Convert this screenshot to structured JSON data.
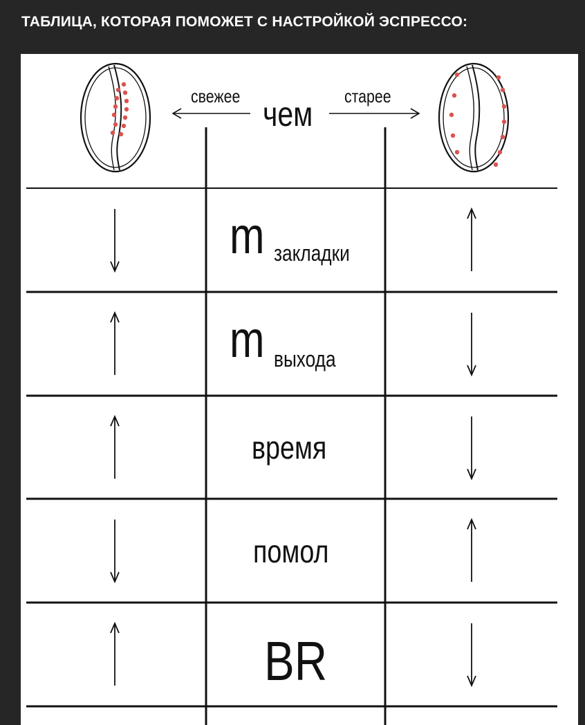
{
  "header": {
    "title": "ТАБЛИЦА, КОТОРАЯ ПОМОЖЕТ С НАСТРОЙКОЙ ЭСПРЕССО:"
  },
  "table": {
    "header": {
      "fresher": "свежее",
      "than": "чем",
      "older": "старее",
      "left_bean_icon": "fresh-coffee-bean-icon",
      "right_bean_icon": "old-coffee-bean-icon"
    },
    "rows": [
      {
        "main": "m",
        "sub": "закладки",
        "fresher": "down",
        "older": "up"
      },
      {
        "main": "m",
        "sub": "выхода",
        "fresher": "up",
        "older": "down"
      },
      {
        "main": "время",
        "sub": "",
        "fresher": "up",
        "older": "down"
      },
      {
        "main": "помол",
        "sub": "",
        "fresher": "down",
        "older": "up"
      },
      {
        "main": "BR",
        "sub": "",
        "fresher": "up",
        "older": "down"
      }
    ],
    "dot_color": "#d9534f"
  }
}
